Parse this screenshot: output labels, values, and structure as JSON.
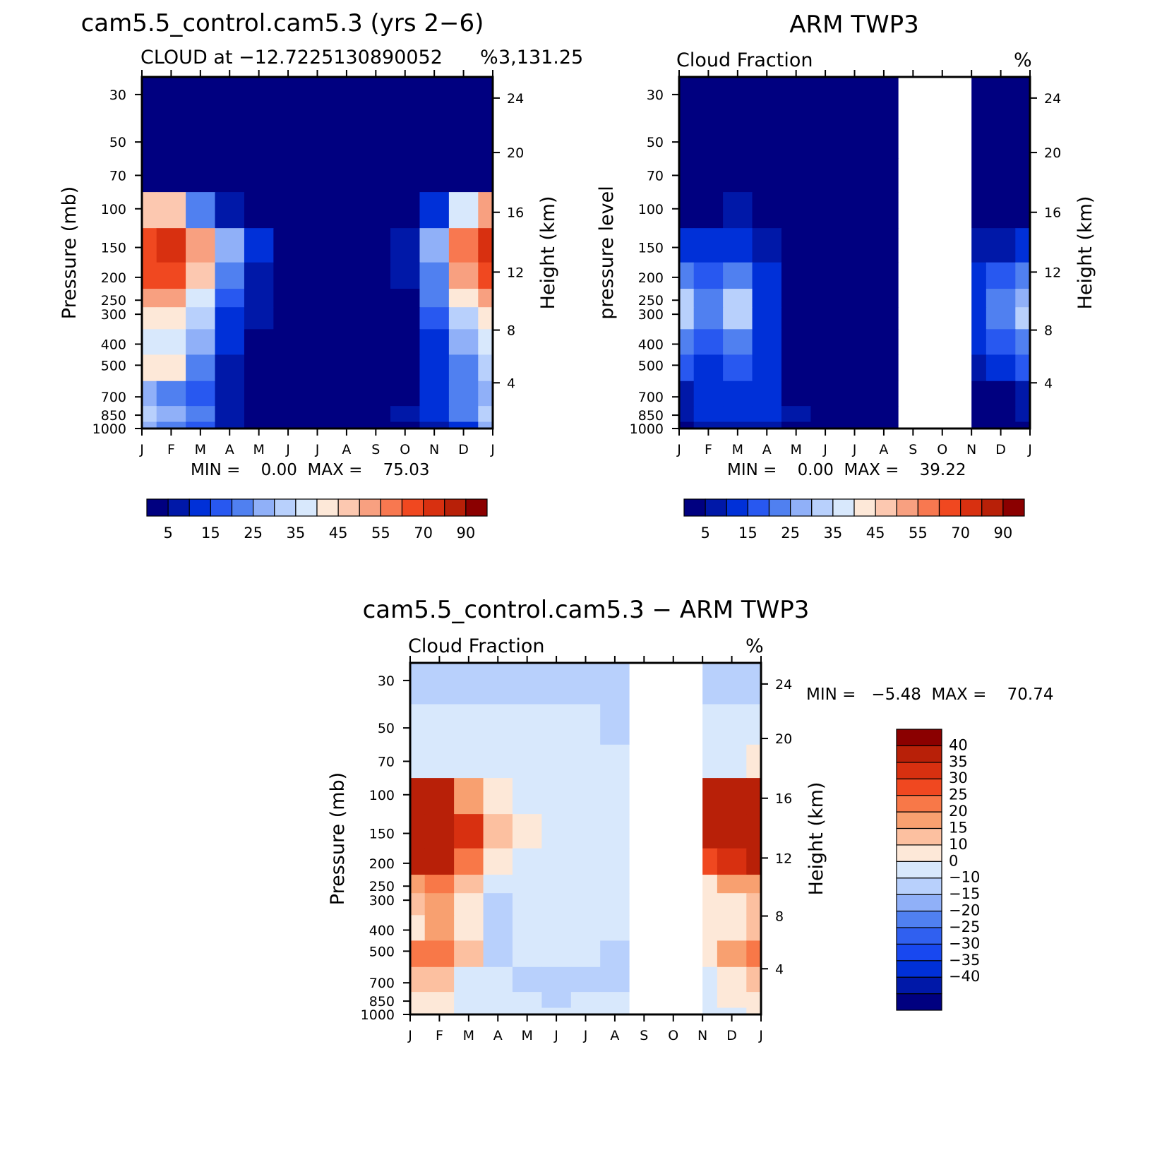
{
  "colors": {
    "positive_scale": [
      "#000080",
      "#0018a8",
      "#0030d8",
      "#2858f0",
      "#5080f0",
      "#90b0f8",
      "#b8d0fc",
      "#d8e8fc",
      "#fde8d8",
      "#fcc8b0",
      "#f8a080",
      "#f87850",
      "#f04820",
      "#d83010",
      "#b82008",
      "#8b0000"
    ],
    "difference_scale": [
      "#000080",
      "#0018a8",
      "#0030d8",
      "#1848f0",
      "#3060f0",
      "#5080f0",
      "#90b0f8",
      "#b8d0fc",
      "#d8e8fc",
      "#fde8d8",
      "#fcc0a0",
      "#f8a070",
      "#f87848",
      "#f04820",
      "#d83010",
      "#b82008",
      "#8b0000"
    ],
    "missing": "#ffffff"
  },
  "panels": [
    {
      "title": "cam5.5_control.cam5.3 (yrs 2−6)",
      "subtitle_left": "CLOUD at −12.7225130890052",
      "subtitle_right": "3,131.25",
      "units_glyph": "%",
      "y_label": "Pressure (mb)",
      "y2_label": "Height (km)",
      "min_max": "MIN =    0.00  MAX =    75.03"
    },
    {
      "title": "ARM TWP3",
      "subtitle_left": "Cloud Fraction",
      "units_glyph": "%",
      "y_label": "pressure level",
      "y2_label": "Height (km)",
      "min_max": "MIN =    0.00  MAX =    39.22"
    },
    {
      "title": "cam5.5_control.cam5.3 − ARM TWP3",
      "subtitle_left": "Cloud Fraction",
      "units_glyph": "%",
      "y_label": "Pressure (mb)",
      "y2_label": "Height (km)",
      "min_max": "MIN =   −5.48  MAX =    70.74"
    }
  ],
  "chart_data": [
    {
      "type": "heatmap",
      "title": "cam5.5_control.cam5.3 (yrs 2−6)",
      "subtitle": "CLOUD at −12.72251308900523,131.25",
      "units": "%",
      "ylabel": "Pressure (mb)",
      "y2label": "Height (km)",
      "x_ticks": [
        "J",
        "F",
        "M",
        "A",
        "M",
        "J",
        "J",
        "A",
        "S",
        "O",
        "N",
        "D",
        "J"
      ],
      "y_ticks": [
        "30",
        "50",
        "70",
        "100",
        "150",
        "200",
        "250",
        "300",
        "400",
        "500",
        "700",
        "850",
        "1000"
      ],
      "y2_ticks": [
        "24",
        "20",
        "16",
        "12",
        "8",
        "4"
      ],
      "levels": [
        5,
        10,
        15,
        20,
        25,
        30,
        35,
        40,
        45,
        50,
        55,
        60,
        70,
        80,
        90
      ],
      "colorbar_labels": [
        "5",
        "15",
        "25",
        "35",
        "45",
        "55",
        "70",
        "90"
      ],
      "min": 0.0,
      "max": 75.03,
      "cells": [
        [
          0,
          0,
          0,
          0,
          0,
          0,
          0,
          0,
          0,
          0,
          0,
          0,
          0
        ],
        [
          0,
          0,
          0,
          0,
          0,
          0,
          0,
          0,
          0,
          0,
          0,
          0,
          0
        ],
        [
          4,
          4,
          1,
          0,
          0,
          0,
          0,
          0,
          0,
          0,
          0,
          1,
          4
        ],
        [
          48,
          46,
          22,
          8,
          3,
          2,
          1,
          1,
          1,
          3,
          10,
          38,
          50
        ],
        [
          68,
          72,
          50,
          26,
          10,
          4,
          2,
          2,
          2,
          6,
          28,
          58,
          70
        ],
        [
          62,
          64,
          46,
          20,
          8,
          2,
          1,
          1,
          2,
          6,
          24,
          52,
          64
        ],
        [
          52,
          50,
          36,
          16,
          6,
          2,
          1,
          1,
          1,
          4,
          20,
          40,
          54
        ],
        [
          44,
          42,
          30,
          14,
          5,
          1,
          0,
          0,
          1,
          4,
          16,
          32,
          42
        ],
        [
          36,
          38,
          28,
          10,
          3,
          0,
          0,
          0,
          0,
          2,
          12,
          26,
          36
        ],
        [
          40,
          42,
          24,
          8,
          2,
          0,
          0,
          0,
          0,
          2,
          10,
          22,
          30
        ],
        [
          26,
          22,
          18,
          6,
          2,
          0,
          0,
          0,
          0,
          4,
          12,
          20,
          26
        ],
        [
          30,
          28,
          22,
          8,
          4,
          2,
          0,
          0,
          0,
          6,
          14,
          20,
          30
        ],
        [
          28,
          24,
          16,
          6,
          4,
          0,
          0,
          0,
          0,
          4,
          8,
          14,
          26
        ]
      ]
    },
    {
      "type": "heatmap",
      "title": "ARM TWP3",
      "subtitle": "Cloud Fraction",
      "units": "%",
      "ylabel": "pressure level",
      "y2label": "Height (km)",
      "x_ticks": [
        "J",
        "F",
        "M",
        "A",
        "M",
        "J",
        "J",
        "A",
        "S",
        "O",
        "N",
        "D",
        "J"
      ],
      "y_ticks": [
        "30",
        "50",
        "70",
        "100",
        "150",
        "200",
        "250",
        "300",
        "400",
        "500",
        "700",
        "850",
        "1000"
      ],
      "y2_ticks": [
        "24",
        "20",
        "16",
        "12",
        "8",
        "4"
      ],
      "levels": [
        5,
        10,
        15,
        20,
        25,
        30,
        35,
        40,
        45,
        50,
        55,
        60,
        70,
        80,
        90
      ],
      "colorbar_labels": [
        "5",
        "15",
        "25",
        "35",
        "45",
        "55",
        "70",
        "90"
      ],
      "min": 0.0,
      "max": 39.22,
      "missing_months": [
        "S-O",
        "O-N"
      ],
      "cells": [
        [
          0,
          0,
          0,
          0,
          0,
          0,
          0,
          0,
          null,
          null,
          0,
          0,
          0
        ],
        [
          0,
          0,
          0,
          0,
          0,
          0,
          0,
          0,
          null,
          null,
          0,
          0,
          0
        ],
        [
          0,
          0,
          0,
          0,
          0,
          0,
          0,
          0,
          null,
          null,
          0,
          0,
          0
        ],
        [
          3,
          4,
          5,
          3,
          0,
          0,
          0,
          0,
          null,
          null,
          2,
          3,
          4
        ],
        [
          10,
          12,
          14,
          8,
          2,
          0,
          0,
          0,
          null,
          null,
          6,
          8,
          12
        ],
        [
          22,
          18,
          22,
          14,
          4,
          0,
          0,
          0,
          null,
          null,
          10,
          18,
          24
        ],
        [
          30,
          20,
          30,
          14,
          4,
          0,
          0,
          0,
          null,
          null,
          14,
          22,
          28
        ],
        [
          34,
          20,
          34,
          14,
          4,
          0,
          0,
          0,
          null,
          null,
          14,
          24,
          30
        ],
        [
          24,
          16,
          22,
          12,
          2,
          0,
          0,
          0,
          null,
          null,
          10,
          18,
          22
        ],
        [
          18,
          12,
          16,
          10,
          2,
          0,
          0,
          0,
          null,
          null,
          8,
          14,
          18
        ],
        [
          6,
          12,
          14,
          10,
          4,
          0,
          0,
          0,
          null,
          null,
          4,
          4,
          6
        ],
        [
          6,
          10,
          12,
          10,
          8,
          4,
          0,
          0,
          null,
          null,
          4,
          4,
          6
        ],
        [
          4,
          6,
          8,
          8,
          4,
          2,
          0,
          0,
          null,
          null,
          2,
          2,
          4
        ]
      ]
    },
    {
      "type": "heatmap",
      "title": "cam5.5_control.cam5.3 − ARM TWP3",
      "subtitle": "Cloud Fraction",
      "units": "%",
      "ylabel": "Pressure (mb)",
      "y2label": "Height (km)",
      "x_ticks": [
        "J",
        "F",
        "M",
        "A",
        "M",
        "J",
        "J",
        "A",
        "S",
        "O",
        "N",
        "D",
        "J"
      ],
      "y_ticks": [
        "30",
        "50",
        "70",
        "100",
        "150",
        "200",
        "250",
        "300",
        "400",
        "500",
        "700",
        "850",
        "1000"
      ],
      "y2_ticks": [
        "24",
        "20",
        "16",
        "12",
        "8",
        "4"
      ],
      "levels": [
        -40,
        -35,
        -30,
        -25,
        -20,
        -15,
        -10,
        0,
        10,
        15,
        20,
        25,
        30,
        35,
        40
      ],
      "colorbar_labels": [
        "40",
        "35",
        "30",
        "25",
        "20",
        "15",
        "10",
        "0",
        "−10",
        "−15",
        "−20",
        "−25",
        "−30",
        "−35",
        "−40"
      ],
      "min": -5.48,
      "max": 70.74,
      "missing_months": [
        "S-O",
        "O-N"
      ],
      "cells": [
        [
          -2,
          -2,
          -2,
          -2,
          -2,
          -2,
          -2,
          -2,
          null,
          null,
          -2,
          -2,
          -2
        ],
        [
          2,
          2,
          2,
          2,
          2,
          2,
          2,
          -1,
          null,
          null,
          2,
          2,
          2
        ],
        [
          8,
          6,
          4,
          2,
          2,
          2,
          2,
          2,
          null,
          null,
          6,
          8,
          10
        ],
        [
          48,
          44,
          22,
          10,
          4,
          2,
          2,
          2,
          null,
          null,
          42,
          48,
          50
        ],
        [
          58,
          62,
          38,
          18,
          10,
          4,
          2,
          2,
          null,
          null,
          40,
          58,
          64
        ],
        [
          42,
          44,
          26,
          12,
          6,
          2,
          2,
          2,
          null,
          null,
          34,
          38,
          42
        ],
        [
          22,
          28,
          16,
          4,
          4,
          2,
          2,
          2,
          null,
          null,
          14,
          20,
          24
        ],
        [
          16,
          20,
          14,
          -2,
          2,
          2,
          2,
          2,
          null,
          null,
          10,
          14,
          18
        ],
        [
          14,
          20,
          12,
          -2,
          2,
          2,
          2,
          2,
          null,
          null,
          10,
          12,
          16
        ],
        [
          26,
          28,
          16,
          -2,
          2,
          2,
          2,
          -2,
          null,
          null,
          12,
          20,
          26
        ],
        [
          18,
          16,
          8,
          2,
          -2,
          -2,
          -2,
          -2,
          null,
          null,
          8,
          14,
          18
        ],
        [
          12,
          14,
          8,
          2,
          2,
          -2,
          2,
          2,
          null,
          null,
          6,
          10,
          14
        ],
        [
          10,
          12,
          6,
          2,
          2,
          2,
          2,
          2,
          null,
          null,
          6,
          8,
          12
        ]
      ]
    }
  ]
}
